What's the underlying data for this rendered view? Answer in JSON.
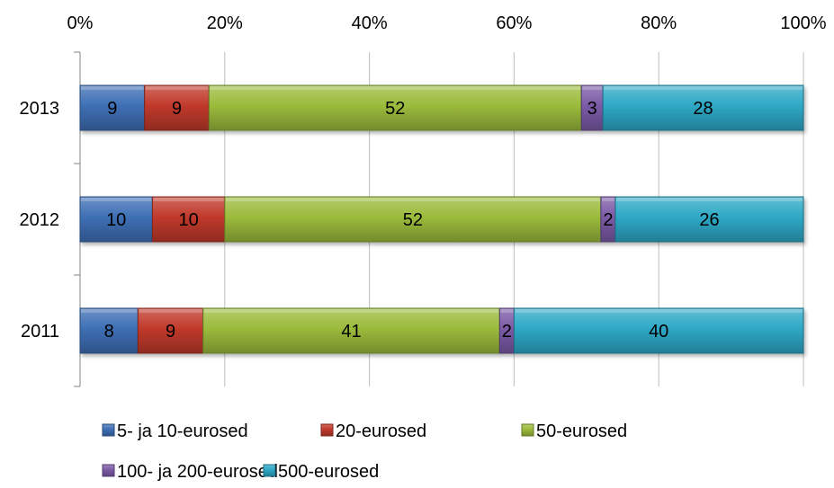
{
  "chart_data": {
    "type": "bar",
    "orientation": "horizontal",
    "stacking": "percent",
    "categories": [
      "2013",
      "2012",
      "2011"
    ],
    "series": [
      {
        "name": "5- ja 10-eurosed",
        "values": [
          9,
          10,
          8
        ],
        "color": "#3E6FB5"
      },
      {
        "name": "20-eurosed",
        "values": [
          9,
          10,
          9
        ],
        "color": "#C0392B"
      },
      {
        "name": "50-eurosed",
        "values": [
          52,
          52,
          41
        ],
        "color": "#9BBB3C"
      },
      {
        "name": "100- ja 200-eurosed",
        "values": [
          3,
          2,
          2
        ],
        "color": "#7B5AA6"
      },
      {
        "name": "500-eurosed",
        "values": [
          28,
          26,
          40
        ],
        "color": "#2EA8C6"
      }
    ],
    "xticks": [
      "0%",
      "20%",
      "40%",
      "60%",
      "80%",
      "100%"
    ],
    "xaxis_position": "top",
    "xlim": [
      0,
      100
    ],
    "grid": true,
    "legend_position": "bottom"
  }
}
